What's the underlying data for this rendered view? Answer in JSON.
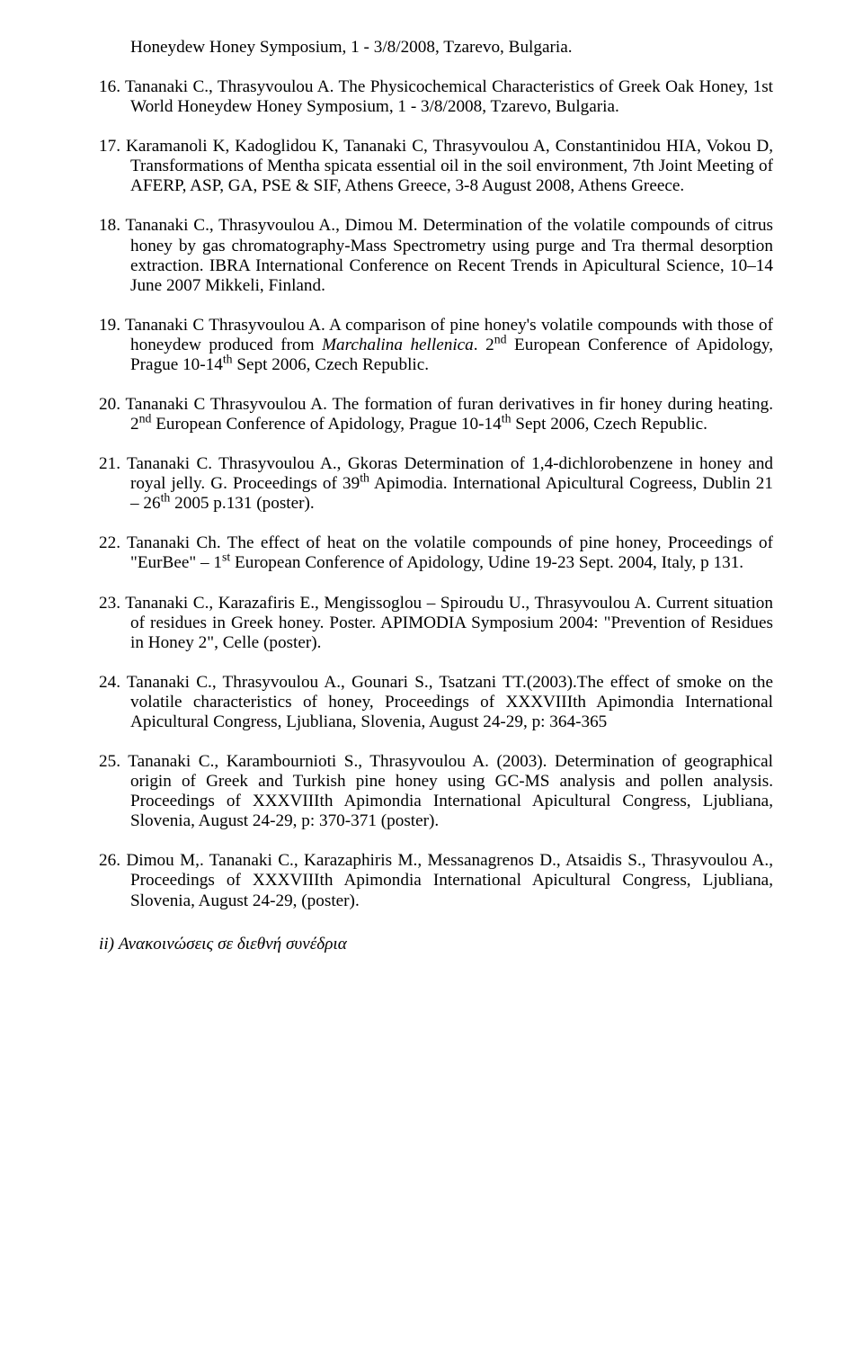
{
  "top_continuation": "Honeydew Honey Symposium, 1 - 3/8/2008, Tzarevo, Bulgaria.",
  "entries": [
    {
      "num": "16.",
      "html": "Tananaki C., Thrasyvoulou A. The Physicochemical Characteristics of Greek Oak Honey, 1st World Honeydew Honey Symposium, 1 - 3/8/2008, Tzarevo, Bulgaria."
    },
    {
      "num": "17.",
      "html": "Karamanoli K, Kadoglidou K, Tananaki C, Thrasyvoulou A, Constantinidou HIA, Vokou D, Transformations of Mentha spicata essential oil in the soil environment, 7th Joint Meeting of AFERP, ASP, GA, PSE & SIF, Athens Greece, 3-8 August 2008, Athens Greece."
    },
    {
      "num": "18.",
      "html": "Tananaki C., Thrasyvoulou A., Dimou M. Determination of the volatile compounds of citrus honey by gas chromatography-Mass Spectrometry using purge and Tra thermal desorption extraction. IBRA International Conference on Recent Trends in Apicultural Science, 10–14 June 2007 Mikkeli, Finland."
    },
    {
      "num": "19.",
      "html": "Tananaki C Thrasyvoulou A. A comparison of pine honey's volatile compounds with those of honeydew produced from <span class=\"ital\">Marchalina hellenica</span>. 2<sup>nd</sup> European Conference of Apidology, Prague 10-14<sup>th</sup> Sept 2006, Czech Republic."
    },
    {
      "num": "20.",
      "html": "Tananaki C Thrasyvoulou A. The formation of furan derivatives in fir honey during heating. 2<sup>nd</sup> European Conference of Apidology, Prague 10-14<sup>th</sup> Sept 2006, Czech Republic."
    },
    {
      "num": "21.",
      "html": "Tananaki C. Thrasyvoulou A., Gkoras Determination of 1,4-dichlorobenzene in honey and royal jelly. G. Proceedings of 39<sup>th</sup> Apimodia. International Apicultural Cogreess, Dublin 21 – 26<sup>th</sup> 2005 p.131 (poster)."
    },
    {
      "num": "22.",
      "html": "Tananaki Ch. The effect of heat on the volatile compounds of pine honey, Proceedings of \"EurBee\" – 1<sup>st</sup> European Conference of Apidology, Udine 19-23 Sept. 2004, Italy, p 131."
    },
    {
      "num": "23.",
      "html": "Tananaki C., Karazafiris E., Mengissoglou – Spiroudu U., Thrasyvoulou A. Current situation of residues in Greek honey. Poster. APIMODIA Symposium 2004: \"Prevention of Residues in Honey 2\", Celle (poster)."
    },
    {
      "num": "24.",
      "html": "Tananaki C., Thrasyvoulou A., Gounari S., Tsatzani TT.(2003).The effect of smoke on the volatile characteristics of honey, Proceedings of XXXVIIIth Apimondia International Apicultural Congress, Ljubliana, Slovenia, August 24-29, p: 364-365"
    },
    {
      "num": "25.",
      "html": "Tananaki C., Karambournioti S., Thrasyvoulou A. (2003). Determination of geographical origin of Greek and Turkish pine honey using GC-MS analysis and pollen analysis. Proceedings of XXXVIIIth Apimondia International Apicultural Congress, Ljubliana, Slovenia, August 24-29, p: 370-371 (poster)."
    },
    {
      "num": "26.",
      "html": "Dimou M,. Tananaki C., Karazaphiris M., Messanagrenos D., Atsaidis S., Thrasyvoulou A., Proceedings of XXXVIIIth Apimondia International Apicultural Congress, Ljubliana, Slovenia, August 24-29, (poster)."
    }
  ],
  "footer": "ii) Ανακοινώσεις σε διεθνή συνέδρια"
}
